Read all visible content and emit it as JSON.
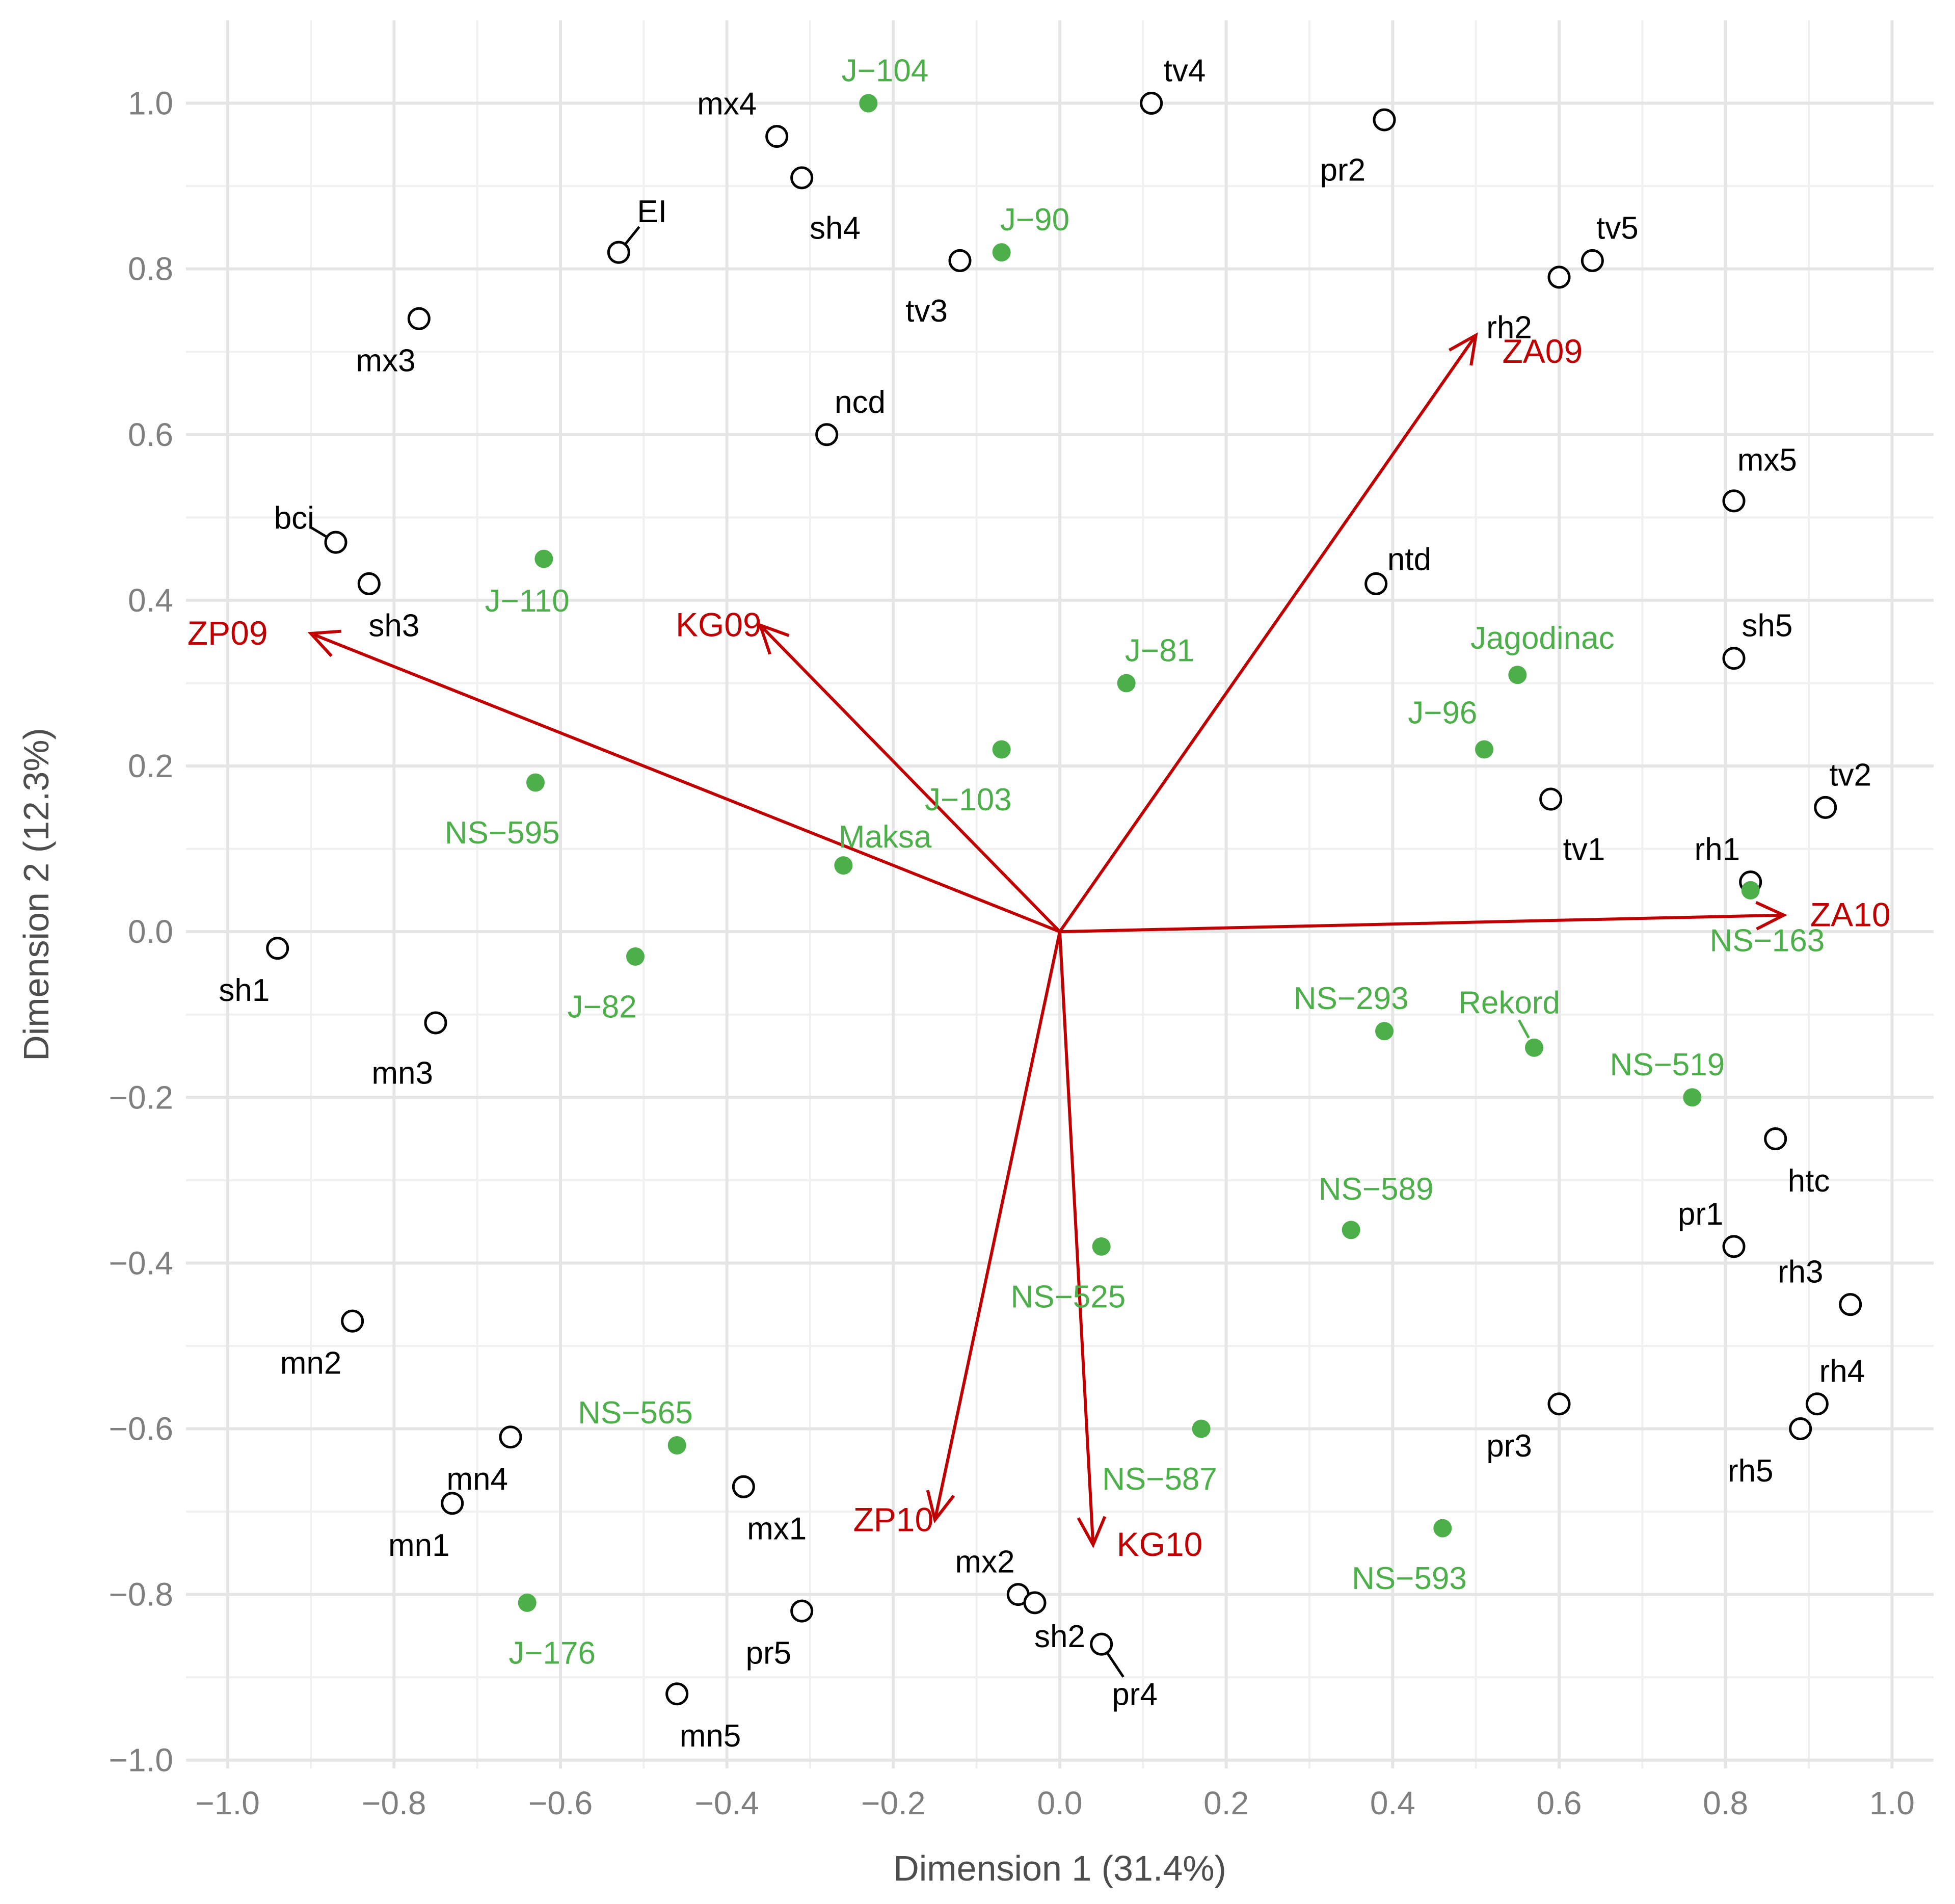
{
  "colors": {
    "variety": "#4daf4a",
    "trait": "#000000",
    "arrow": "#c00000",
    "grid": "#e5e5e5",
    "gridMinor": "#f0f0f0",
    "axisText": "#7f7f7f",
    "axisTitle": "#4d4d4d"
  },
  "chart_data": {
    "type": "scatter",
    "subtype": "biplot",
    "xlabel": "Dimension 1 (31.4%)",
    "ylabel": "Dimension 2 (12.3%)",
    "xlim": [
      -1.05,
      1.05
    ],
    "ylim": [
      -1.01,
      1.1
    ],
    "xticks": [
      -1.0,
      -0.8,
      -0.6,
      -0.4,
      -0.2,
      0.0,
      0.2,
      0.4,
      0.6,
      0.8,
      1.0
    ],
    "yticks": [
      -1.0,
      -0.8,
      -0.6,
      -0.4,
      -0.2,
      0.0,
      0.2,
      0.4,
      0.6,
      0.8,
      1.0
    ],
    "xtick_labels": [
      "−1.0",
      "−0.8",
      "−0.6",
      "−0.4",
      "−0.2",
      "0.0",
      "0.2",
      "0.4",
      "0.6",
      "0.8",
      "1.0"
    ],
    "ytick_labels": [
      "−1.0",
      "−0.8",
      "−0.6",
      "−0.4",
      "−0.2",
      "0.0",
      "0.2",
      "0.4",
      "0.6",
      "0.8",
      "1.0"
    ],
    "grid": true,
    "varieties": [
      {
        "name": "J−104",
        "x": -0.23,
        "y": 1.0,
        "lx": -0.21,
        "ly": 1.04
      },
      {
        "name": "J−90",
        "x": -0.07,
        "y": 0.82,
        "lx": -0.03,
        "ly": 0.86
      },
      {
        "name": "J−110",
        "x": -0.62,
        "y": 0.45,
        "lx": -0.64,
        "ly": 0.4
      },
      {
        "name": "J−81",
        "x": 0.08,
        "y": 0.3,
        "lx": 0.12,
        "ly": 0.34
      },
      {
        "name": "Jagodinac",
        "x": 0.55,
        "y": 0.31,
        "lx": 0.58,
        "ly": 0.355
      },
      {
        "name": "J−96",
        "x": 0.51,
        "y": 0.22,
        "lx": 0.46,
        "ly": 0.265
      },
      {
        "name": "J−103",
        "x": -0.07,
        "y": 0.22,
        "lx": -0.11,
        "ly": 0.16
      },
      {
        "name": "NS−595",
        "x": -0.63,
        "y": 0.18,
        "lx": -0.67,
        "ly": 0.12
      },
      {
        "name": "Maksa",
        "x": -0.26,
        "y": 0.08,
        "lx": -0.21,
        "ly": 0.115
      },
      {
        "name": "NS−163",
        "x": 0.83,
        "y": 0.05,
        "lx": 0.85,
        "ly": -0.01
      },
      {
        "name": "J−82",
        "x": -0.51,
        "y": -0.03,
        "lx": -0.55,
        "ly": -0.09
      },
      {
        "name": "NS−293",
        "x": 0.39,
        "y": -0.12,
        "lx": 0.35,
        "ly": -0.08
      },
      {
        "name": "Rekord",
        "x": 0.57,
        "y": -0.14,
        "lx": 0.54,
        "ly": -0.085,
        "leader": true
      },
      {
        "name": "NS−519",
        "x": 0.76,
        "y": -0.2,
        "lx": 0.73,
        "ly": -0.16
      },
      {
        "name": "NS−589",
        "x": 0.35,
        "y": -0.36,
        "lx": 0.38,
        "ly": -0.31
      },
      {
        "name": "NS−525",
        "x": 0.05,
        "y": -0.38,
        "lx": 0.01,
        "ly": -0.44
      },
      {
        "name": "NS−565",
        "x": -0.46,
        "y": -0.62,
        "lx": -0.51,
        "ly": -0.58
      },
      {
        "name": "NS−587",
        "x": 0.17,
        "y": -0.6,
        "lx": 0.12,
        "ly": -0.66
      },
      {
        "name": "NS−593",
        "x": 0.46,
        "y": -0.72,
        "lx": 0.42,
        "ly": -0.78
      },
      {
        "name": "J−176",
        "x": -0.64,
        "y": -0.81,
        "lx": -0.61,
        "ly": -0.87
      }
    ],
    "traits": [
      {
        "name": "mx4",
        "x": -0.34,
        "y": 0.96,
        "lx": -0.4,
        "ly": 1.0
      },
      {
        "name": "tv4",
        "x": 0.11,
        "y": 1.0,
        "lx": 0.15,
        "ly": 1.04
      },
      {
        "name": "pr2",
        "x": 0.39,
        "y": 0.98,
        "lx": 0.34,
        "ly": 0.92
      },
      {
        "name": "sh4",
        "x": -0.31,
        "y": 0.91,
        "lx": -0.27,
        "ly": 0.85
      },
      {
        "name": "EI",
        "x": -0.53,
        "y": 0.82,
        "lx": -0.49,
        "ly": 0.87,
        "leader": true
      },
      {
        "name": "tv3",
        "x": -0.12,
        "y": 0.81,
        "lx": -0.16,
        "ly": 0.75
      },
      {
        "name": "tv5",
        "x": 0.64,
        "y": 0.81,
        "lx": 0.67,
        "ly": 0.85
      },
      {
        "name": "rh2",
        "x": 0.6,
        "y": 0.79,
        "lx": 0.54,
        "ly": 0.73
      },
      {
        "name": "mx3",
        "x": -0.77,
        "y": 0.74,
        "lx": -0.81,
        "ly": 0.69
      },
      {
        "name": "ncd",
        "x": -0.28,
        "y": 0.6,
        "lx": -0.24,
        "ly": 0.64
      },
      {
        "name": "mx5",
        "x": 0.81,
        "y": 0.52,
        "lx": 0.85,
        "ly": 0.57
      },
      {
        "name": "bci",
        "x": -0.87,
        "y": 0.47,
        "lx": -0.92,
        "ly": 0.5,
        "leader": true
      },
      {
        "name": "ntd",
        "x": 0.38,
        "y": 0.42,
        "lx": 0.42,
        "ly": 0.45
      },
      {
        "name": "sh3",
        "x": -0.83,
        "y": 0.42,
        "lx": -0.8,
        "ly": 0.37
      },
      {
        "name": "sh5",
        "x": 0.81,
        "y": 0.33,
        "lx": 0.85,
        "ly": 0.37
      },
      {
        "name": "tv1",
        "x": 0.59,
        "y": 0.16,
        "lx": 0.63,
        "ly": 0.1
      },
      {
        "name": "tv2",
        "x": 0.92,
        "y": 0.15,
        "lx": 0.95,
        "ly": 0.19
      },
      {
        "name": "rh1",
        "x": 0.83,
        "y": 0.06,
        "lx": 0.79,
        "ly": 0.1
      },
      {
        "name": "sh1",
        "x": -0.94,
        "y": -0.02,
        "lx": -0.98,
        "ly": -0.07
      },
      {
        "name": "mn3",
        "x": -0.75,
        "y": -0.11,
        "lx": -0.79,
        "ly": -0.17
      },
      {
        "name": "htc",
        "x": 0.86,
        "y": -0.25,
        "lx": 0.9,
        "ly": -0.3
      },
      {
        "name": "pr1",
        "x": 0.81,
        "y": -0.38,
        "lx": 0.77,
        "ly": -0.34
      },
      {
        "name": "rh3",
        "x": 0.95,
        "y": -0.45,
        "lx": 0.89,
        "ly": -0.41
      },
      {
        "name": "mn2",
        "x": -0.85,
        "y": -0.47,
        "lx": -0.9,
        "ly": -0.52
      },
      {
        "name": "pr3",
        "x": 0.6,
        "y": -0.57,
        "lx": 0.54,
        "ly": -0.62
      },
      {
        "name": "rh4",
        "x": 0.91,
        "y": -0.57,
        "lx": 0.94,
        "ly": -0.53
      },
      {
        "name": "rh5",
        "x": 0.89,
        "y": -0.6,
        "lx": 0.83,
        "ly": -0.65
      },
      {
        "name": "mn4",
        "x": -0.66,
        "y": -0.61,
        "lx": -0.7,
        "ly": -0.66
      },
      {
        "name": "mx1",
        "x": -0.38,
        "y": -0.67,
        "lx": -0.34,
        "ly": -0.72
      },
      {
        "name": "mn1",
        "x": -0.73,
        "y": -0.69,
        "lx": -0.77,
        "ly": -0.74
      },
      {
        "name": "mx2",
        "x": -0.05,
        "y": -0.8,
        "lx": -0.09,
        "ly": -0.76
      },
      {
        "name": "sh2",
        "x": -0.03,
        "y": -0.81,
        "lx": 0.0,
        "ly": -0.85
      },
      {
        "name": "pr5",
        "x": -0.31,
        "y": -0.82,
        "lx": -0.35,
        "ly": -0.87
      },
      {
        "name": "pr4",
        "x": 0.05,
        "y": -0.86,
        "lx": 0.09,
        "ly": -0.92,
        "leader": true
      },
      {
        "name": "mn5",
        "x": -0.46,
        "y": -0.92,
        "lx": -0.42,
        "ly": -0.97
      }
    ],
    "vectors": [
      {
        "name": "ZP09",
        "x": -0.9,
        "y": 0.36,
        "lx": -1.0,
        "ly": 0.36
      },
      {
        "name": "KG09",
        "x": -0.36,
        "y": 0.37,
        "lx": -0.41,
        "ly": 0.37
      },
      {
        "name": "ZA09",
        "x": 0.5,
        "y": 0.72,
        "lx": 0.58,
        "ly": 0.7
      },
      {
        "name": "ZA10",
        "x": 0.87,
        "y": 0.02,
        "lx": 0.95,
        "ly": 0.02
      },
      {
        "name": "ZP10",
        "x": -0.15,
        "y": -0.71,
        "lx": -0.2,
        "ly": -0.71
      },
      {
        "name": "KG10",
        "x": 0.04,
        "y": -0.74,
        "lx": 0.12,
        "ly": -0.74
      }
    ]
  }
}
